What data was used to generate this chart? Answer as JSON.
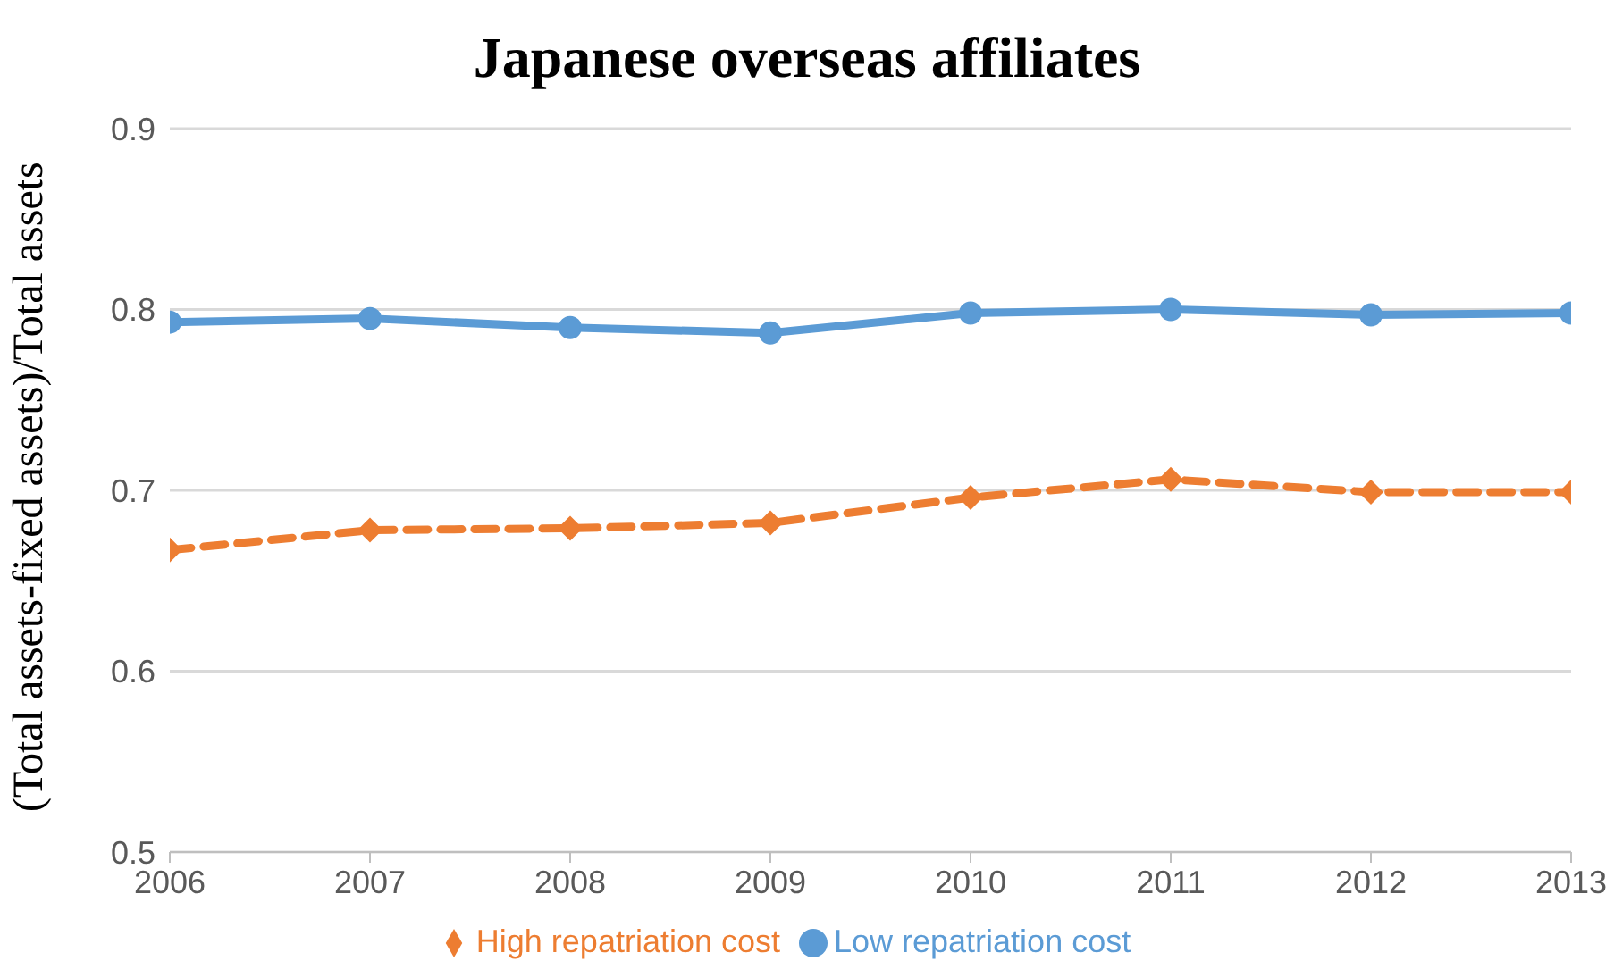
{
  "chart_data": {
    "type": "line",
    "title": "Japanese overseas affiliates",
    "ylabel": "(Total assets-fixed  assets)/Total assets",
    "x": [
      2006,
      2007,
      2008,
      2009,
      2010,
      2011,
      2012,
      2013
    ],
    "xlim": [
      2006,
      2013
    ],
    "xticks": [
      2006,
      2007,
      2008,
      2009,
      2010,
      2011,
      2012,
      2013
    ],
    "ylim": [
      0.5,
      0.9
    ],
    "yticks": [
      0.5,
      0.6,
      0.7,
      0.8,
      0.9
    ],
    "grid": "y",
    "legend": "bottom",
    "series": [
      {
        "name": "Low repatriation cost",
        "color": "#5b9bd5",
        "marker": "circle",
        "line_style": "solid",
        "values": [
          0.793,
          0.795,
          0.79,
          0.787,
          0.798,
          0.8,
          0.797,
          0.798
        ]
      },
      {
        "name": "High repatriation cost",
        "color": "#ed7d31",
        "marker": "diamond",
        "line_style": "dashed",
        "values": [
          0.667,
          0.678,
          0.679,
          0.682,
          0.696,
          0.706,
          0.699,
          0.699
        ]
      }
    ]
  }
}
